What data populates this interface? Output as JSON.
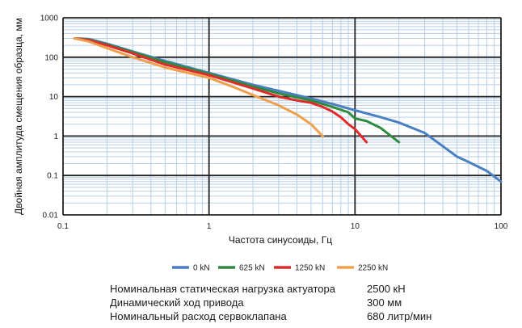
{
  "chart_data": {
    "type": "line",
    "title": "",
    "xlabel": "Частота синусоиды, Гц",
    "ylabel": "Двойная амплитуда смещения образца, мм",
    "x_scale": "log",
    "y_scale": "log",
    "xlim": [
      0.1,
      100
    ],
    "ylim": [
      0.01,
      1000
    ],
    "x_ticks": [
      "0.1",
      "1",
      "10",
      "100"
    ],
    "y_ticks": [
      "1000",
      "100",
      "10",
      "1",
      "0.1",
      "0.01"
    ],
    "grid": true,
    "legend_position": "bottom",
    "series": [
      {
        "name": "0 kN",
        "color": "#4a7fc1",
        "x": [
          0.12,
          0.15,
          0.2,
          0.3,
          0.5,
          1,
          2,
          3,
          5,
          7,
          10,
          15,
          20,
          30,
          40,
          50,
          60,
          80,
          100
        ],
        "y": [
          300,
          290,
          220,
          140,
          80,
          40,
          20,
          14,
          9,
          6.5,
          4.5,
          3,
          2.2,
          1.2,
          0.55,
          0.3,
          0.22,
          0.13,
          0.07
        ]
      },
      {
        "name": "625 kN",
        "color": "#2e8b3e",
        "x": [
          0.12,
          0.15,
          0.2,
          0.3,
          0.5,
          1,
          2,
          3,
          5,
          7,
          9,
          10,
          12,
          15,
          20
        ],
        "y": [
          300,
          280,
          210,
          135,
          75,
          38,
          18,
          12,
          8,
          5.5,
          4,
          2.8,
          2.4,
          1.6,
          0.7
        ]
      },
      {
        "name": "1250 kN",
        "color": "#e02a2a",
        "x": [
          0.12,
          0.15,
          0.2,
          0.3,
          0.5,
          1,
          2,
          3,
          4,
          5,
          6,
          7,
          8,
          9,
          10,
          12
        ],
        "y": [
          300,
          270,
          200,
          125,
          65,
          35,
          16,
          10,
          8,
          7,
          5.5,
          4.2,
          3,
          2,
          1.5,
          0.7
        ]
      },
      {
        "name": "2250 kN",
        "color": "#f0a04b",
        "x": [
          0.12,
          0.15,
          0.2,
          0.3,
          0.5,
          1,
          1.5,
          2,
          3,
          4,
          5,
          6
        ],
        "y": [
          300,
          250,
          170,
          100,
          55,
          30,
          17,
          11,
          6,
          3.5,
          2,
          1
        ]
      }
    ]
  },
  "specs": [
    {
      "label": "Номинальная статическая нагрузка актуатора",
      "value": "2500 кН"
    },
    {
      "label": "Динамический ход привода",
      "value": "300 мм"
    },
    {
      "label": "Номинальный расход сервоклапана",
      "value": "680 литр/мин"
    }
  ]
}
